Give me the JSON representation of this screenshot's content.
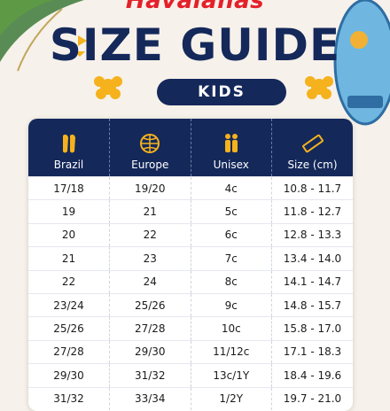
{
  "header": {
    "brand": "Havaianas",
    "title": "SIZE GUIDE",
    "badge": "KIDS"
  },
  "table": {
    "columns": [
      "Brazil",
      "Europe",
      "Unisex",
      "Size (cm)"
    ],
    "rows": [
      [
        "17/18",
        "19/20",
        "4c",
        "10.8 - 11.7"
      ],
      [
        "19",
        "21",
        "5c",
        "11.8 - 12.7"
      ],
      [
        "20",
        "22",
        "6c",
        "12.8 - 13.3"
      ],
      [
        "21",
        "23",
        "7c",
        "13.4 - 14.0"
      ],
      [
        "22",
        "24",
        "8c",
        "14.1 - 14.7"
      ],
      [
        "23/24",
        "25/26",
        "9c",
        "14.8 - 15.7"
      ],
      [
        "25/26",
        "27/28",
        "10c",
        "15.8 - 17.0"
      ],
      [
        "27/28",
        "29/30",
        "11/12c",
        "17.1 - 18.3"
      ],
      [
        "29/30",
        "31/32",
        "13c/1Y",
        "18.4 - 19.6"
      ],
      [
        "31/32",
        "33/34",
        "1/2Y",
        "19.7 - 21.0"
      ]
    ]
  }
}
